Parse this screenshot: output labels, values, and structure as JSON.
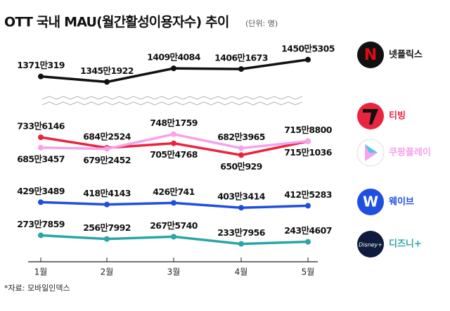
{
  "chart_data": [
    {
      "type": "line",
      "title": "OTT 국내 MAU(월간활성이용자수) 추이",
      "subtitle": "(단위: 명)",
      "ylim": [
        13000000,
        15330000
      ],
      "series": [
        {
          "name": "넷플릭스",
          "color": "#111111",
          "values": [
            13710319,
            13451922,
            14094084,
            14061673,
            14505305
          ],
          "value_labels": [
            "1371만319",
            "1345만1922",
            "1409만4084",
            "1406만1673",
            "1450만5305"
          ]
        }
      ]
    },
    {
      "type": "line",
      "categories": [
        "1월",
        "2월",
        "3월",
        "4월",
        "5월"
      ],
      "ylim": [
        1500000,
        8330000
      ],
      "note": "*자료: 모바일인덱스",
      "series": [
        {
          "name": "티빙",
          "color": "#e8243f",
          "values": [
            7336146,
            6842524,
            7054768,
            6500929,
            7151036
          ],
          "value_labels": [
            "733만6146",
            "684만2524",
            "705만4768",
            "650만929",
            "715만1036"
          ]
        },
        {
          "name": "쿠팡플레이",
          "color": "#f5a3ea",
          "values": [
            6853457,
            6792452,
            7481759,
            6823965,
            7158800
          ],
          "value_labels": [
            "685만3457",
            "679만2452",
            "748만1759",
            "682만3965",
            "715만8800"
          ]
        },
        {
          "name": "웨이브",
          "color": "#1f4fe0",
          "values": [
            4293489,
            4184143,
            4260741,
            4033414,
            4125283
          ],
          "value_labels": [
            "429만3489",
            "418만4143",
            "426만741",
            "403만3414",
            "412만5283"
          ]
        },
        {
          "name": "디즈니+",
          "color": "#2aa5a8",
          "values": [
            2737859,
            2567992,
            2675740,
            2337956,
            2434607
          ],
          "value_labels": [
            "273만7859",
            "256만7992",
            "267만5740",
            "233만7956",
            "243만4607"
          ]
        }
      ]
    }
  ]
}
